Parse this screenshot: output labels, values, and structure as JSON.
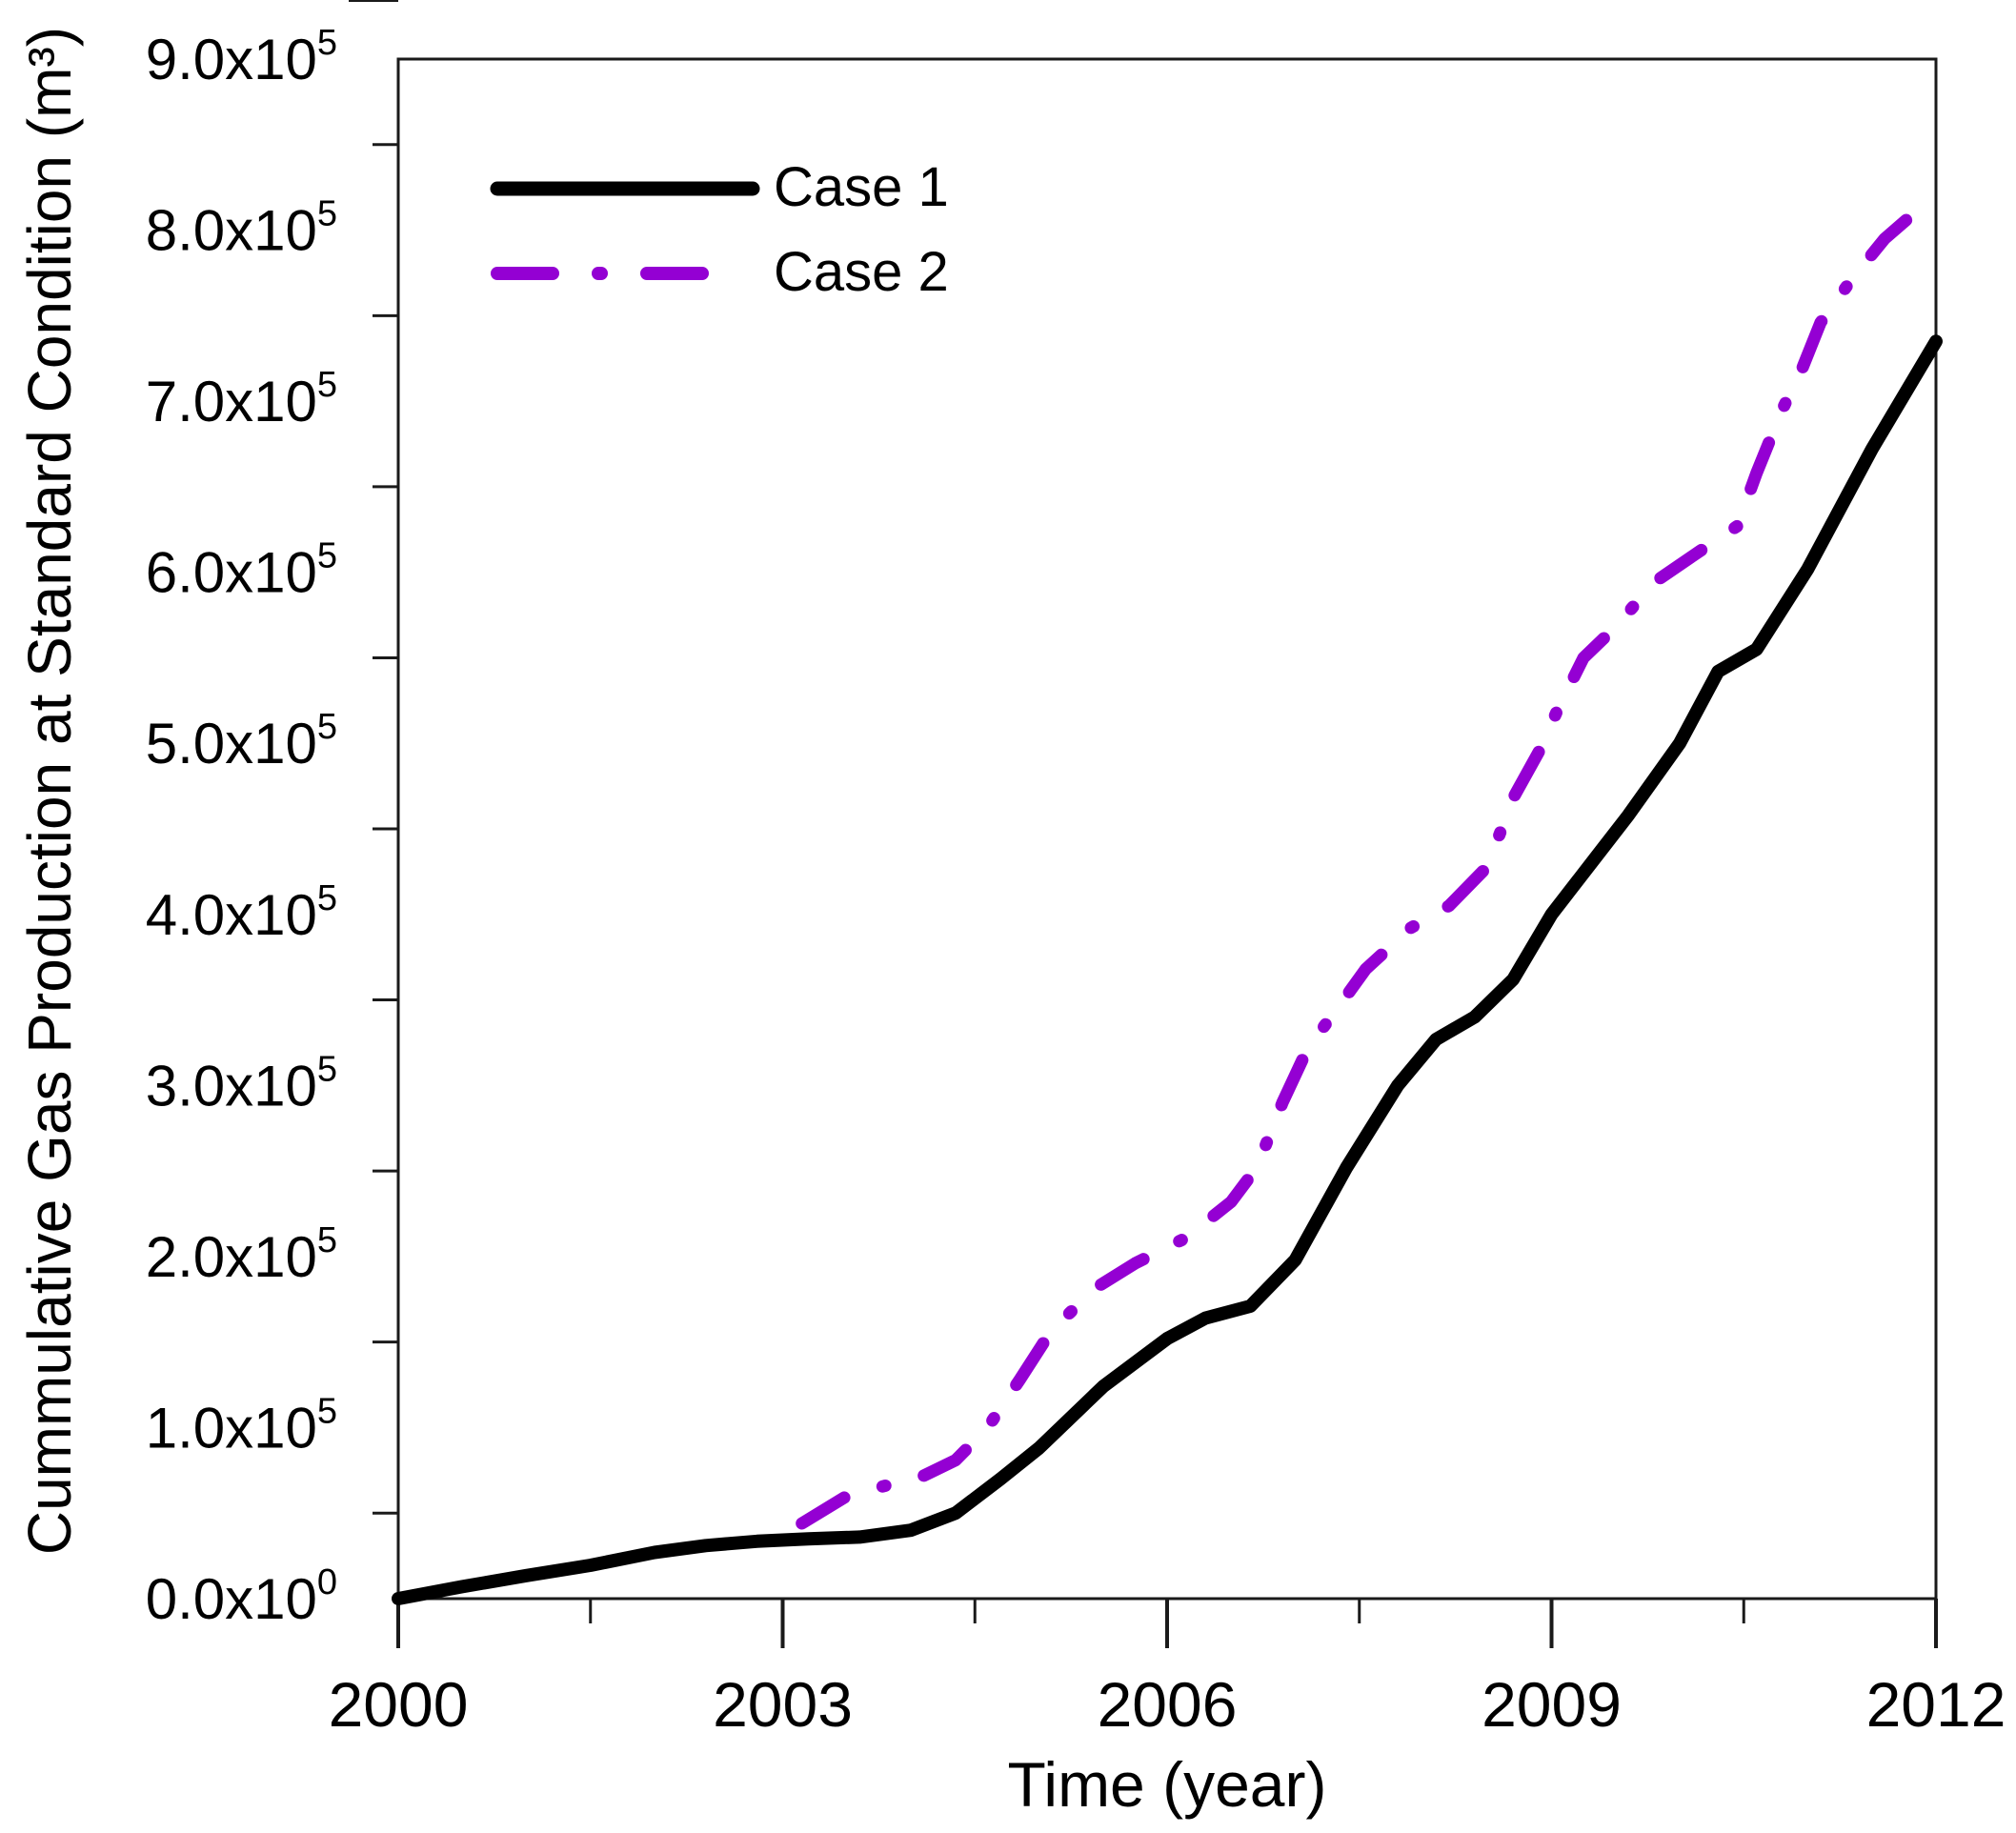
{
  "chart_data": {
    "type": "line",
    "title": "",
    "xlabel": "Time (year)",
    "ylabel": "Cummulative Gas Production at Standard Condition (m³)",
    "xlim": [
      2000,
      2012
    ],
    "ylim": [
      0,
      900000
    ],
    "grid": false,
    "legend_position": "upper-left-inside",
    "frame_color": "#1a1a1a",
    "x_ticks_major": [
      2000,
      2003,
      2006,
      2009,
      2012
    ],
    "x_tick_labels": [
      "2000",
      "2003",
      "2006",
      "2009",
      "2012"
    ],
    "x_ticks_minor": [
      2001.5,
      2004.5,
      2007.5,
      2010.5
    ],
    "y_ticks_major": [
      {
        "value": 0,
        "mantissa": "0.0x10",
        "exponent": "0"
      },
      {
        "value": 100000,
        "mantissa": "1.0x10",
        "exponent": "5"
      },
      {
        "value": 200000,
        "mantissa": "2.0x10",
        "exponent": "5"
      },
      {
        "value": 300000,
        "mantissa": "3.0x10",
        "exponent": "5"
      },
      {
        "value": 400000,
        "mantissa": "4.0x10",
        "exponent": "5"
      },
      {
        "value": 500000,
        "mantissa": "5.0x10",
        "exponent": "5"
      },
      {
        "value": 600000,
        "mantissa": "6.0x10",
        "exponent": "5"
      },
      {
        "value": 700000,
        "mantissa": "7.0x10",
        "exponent": "5"
      },
      {
        "value": 800000,
        "mantissa": "8.0x10",
        "exponent": "5"
      },
      {
        "value": 900000,
        "mantissa": "9.0x10",
        "exponent": "5"
      }
    ],
    "y_ticks_minor": [
      50000,
      150000,
      250000,
      350000,
      450000,
      550000,
      650000,
      750000,
      850000
    ],
    "series": [
      {
        "name": "Case 1",
        "color": "#000000",
        "style": "solid",
        "width": 14,
        "points": [
          [
            2000.0,
            0
          ],
          [
            2000.5,
            7000
          ],
          [
            2001.0,
            13500
          ],
          [
            2001.5,
            19500
          ],
          [
            2002.0,
            27000
          ],
          [
            2002.4,
            31000
          ],
          [
            2002.8,
            33500
          ],
          [
            2003.2,
            35000
          ],
          [
            2003.6,
            36000
          ],
          [
            2004.0,
            40000
          ],
          [
            2004.35,
            50000
          ],
          [
            2004.7,
            70000
          ],
          [
            2005.0,
            88000
          ],
          [
            2005.5,
            124000
          ],
          [
            2006.0,
            152000
          ],
          [
            2006.3,
            164000
          ],
          [
            2006.65,
            171000
          ],
          [
            2007.0,
            198000
          ],
          [
            2007.4,
            252000
          ],
          [
            2007.8,
            300000
          ],
          [
            2008.1,
            327000
          ],
          [
            2008.4,
            340000
          ],
          [
            2008.7,
            362000
          ],
          [
            2009.0,
            400000
          ],
          [
            2009.6,
            458000
          ],
          [
            2010.0,
            500000
          ],
          [
            2010.3,
            542000
          ],
          [
            2010.6,
            555000
          ],
          [
            2011.0,
            602000
          ],
          [
            2011.5,
            672000
          ],
          [
            2012.0,
            735000
          ]
        ]
      },
      {
        "name": "Case 2",
        "color": "#9400D3",
        "style": "dash-dot",
        "width": 13,
        "points": [
          [
            2003.15,
            44000
          ],
          [
            2003.5,
            60000
          ],
          [
            2003.8,
            66000
          ],
          [
            2004.05,
            70000
          ],
          [
            2004.35,
            81000
          ],
          [
            2004.6,
            100000
          ],
          [
            2004.85,
            128000
          ],
          [
            2005.1,
            157000
          ],
          [
            2005.45,
            182000
          ],
          [
            2005.75,
            196000
          ],
          [
            2006.15,
            211000
          ],
          [
            2006.5,
            232000
          ],
          [
            2006.7,
            252000
          ],
          [
            2006.9,
            290000
          ],
          [
            2007.1,
            322000
          ],
          [
            2007.3,
            342000
          ],
          [
            2007.55,
            368000
          ],
          [
            2007.9,
            392000
          ],
          [
            2008.2,
            405000
          ],
          [
            2008.5,
            428000
          ],
          [
            2008.7,
            468000
          ],
          [
            2008.9,
            495000
          ],
          [
            2009.05,
            520000
          ],
          [
            2009.25,
            550000
          ],
          [
            2009.5,
            568000
          ],
          [
            2009.8,
            594000
          ],
          [
            2010.15,
            612000
          ],
          [
            2010.45,
            627000
          ],
          [
            2010.6,
            658000
          ],
          [
            2010.8,
            695000
          ],
          [
            2010.95,
            718000
          ],
          [
            2011.1,
            746000
          ],
          [
            2011.35,
            772000
          ],
          [
            2011.6,
            795000
          ],
          [
            2011.8,
            808000
          ],
          [
            2011.95,
            816000
          ]
        ]
      }
    ]
  }
}
